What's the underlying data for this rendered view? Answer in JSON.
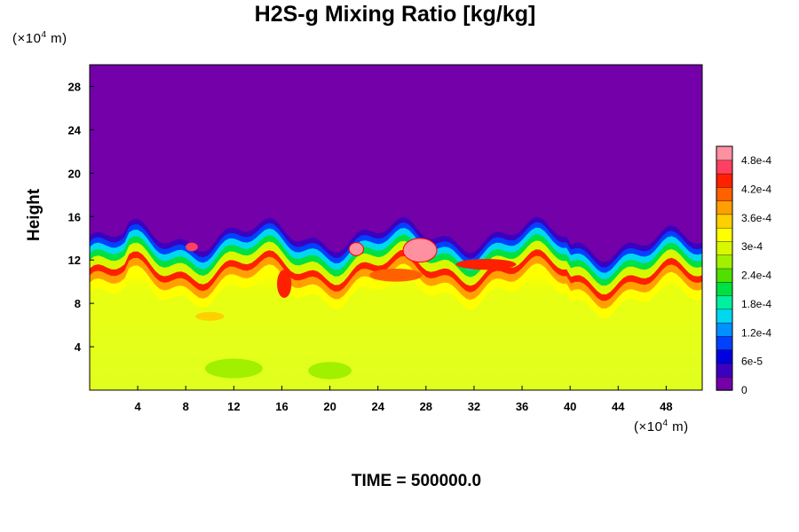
{
  "chart_data": {
    "type": "heatmap",
    "title": "H2S-g Mixing Ratio [kg/kg]",
    "xlabel": "",
    "ylabel": "Height",
    "x_unit": "(×10",
    "x_unit_exp": "4",
    "x_unit_tail": " m)",
    "y_unit": "(×10",
    "y_unit_exp": "4",
    "y_unit_tail": " m)",
    "xlim": [
      0,
      51
    ],
    "ylim": [
      0,
      30
    ],
    "x_ticks": [
      "4",
      "8",
      "12",
      "16",
      "20",
      "24",
      "28",
      "32",
      "36",
      "40",
      "44",
      "48"
    ],
    "y_ticks": [
      "4",
      "8",
      "12",
      "16",
      "20",
      "24",
      "28"
    ],
    "colorbar": {
      "range": [
        0,
        0.00051
      ],
      "tick_labels": [
        "0",
        "6e-5",
        "1.2e-4",
        "1.8e-4",
        "2.4e-4",
        "3e-4",
        "3.6e-4",
        "4.2e-4",
        "4.8e-4"
      ],
      "tick_values": [
        0,
        6e-05,
        0.00012,
        0.00018,
        0.00024,
        0.0003,
        0.00036,
        0.00042,
        0.00048
      ],
      "colors": [
        "#7300a8",
        "#3b00c0",
        "#0000e0",
        "#0040ff",
        "#0090ff",
        "#00d8f0",
        "#00f0a0",
        "#00e040",
        "#50e000",
        "#a0f000",
        "#d8f800",
        "#ffff00",
        "#ffd000",
        "#ffa000",
        "#ff6000",
        "#ff2000",
        "#ff4060",
        "#ff90a0"
      ]
    },
    "field_summary": {
      "background_above_layer": 0,
      "interface_height_range": [
        12,
        15
      ],
      "lower_layer_typical": 0.00033,
      "peak_value_near_interface": 0.00051
    },
    "time_label": "TIME = 500000.0"
  },
  "colors": {
    "background": "#ffffff",
    "top_layer": "#7300a8"
  }
}
